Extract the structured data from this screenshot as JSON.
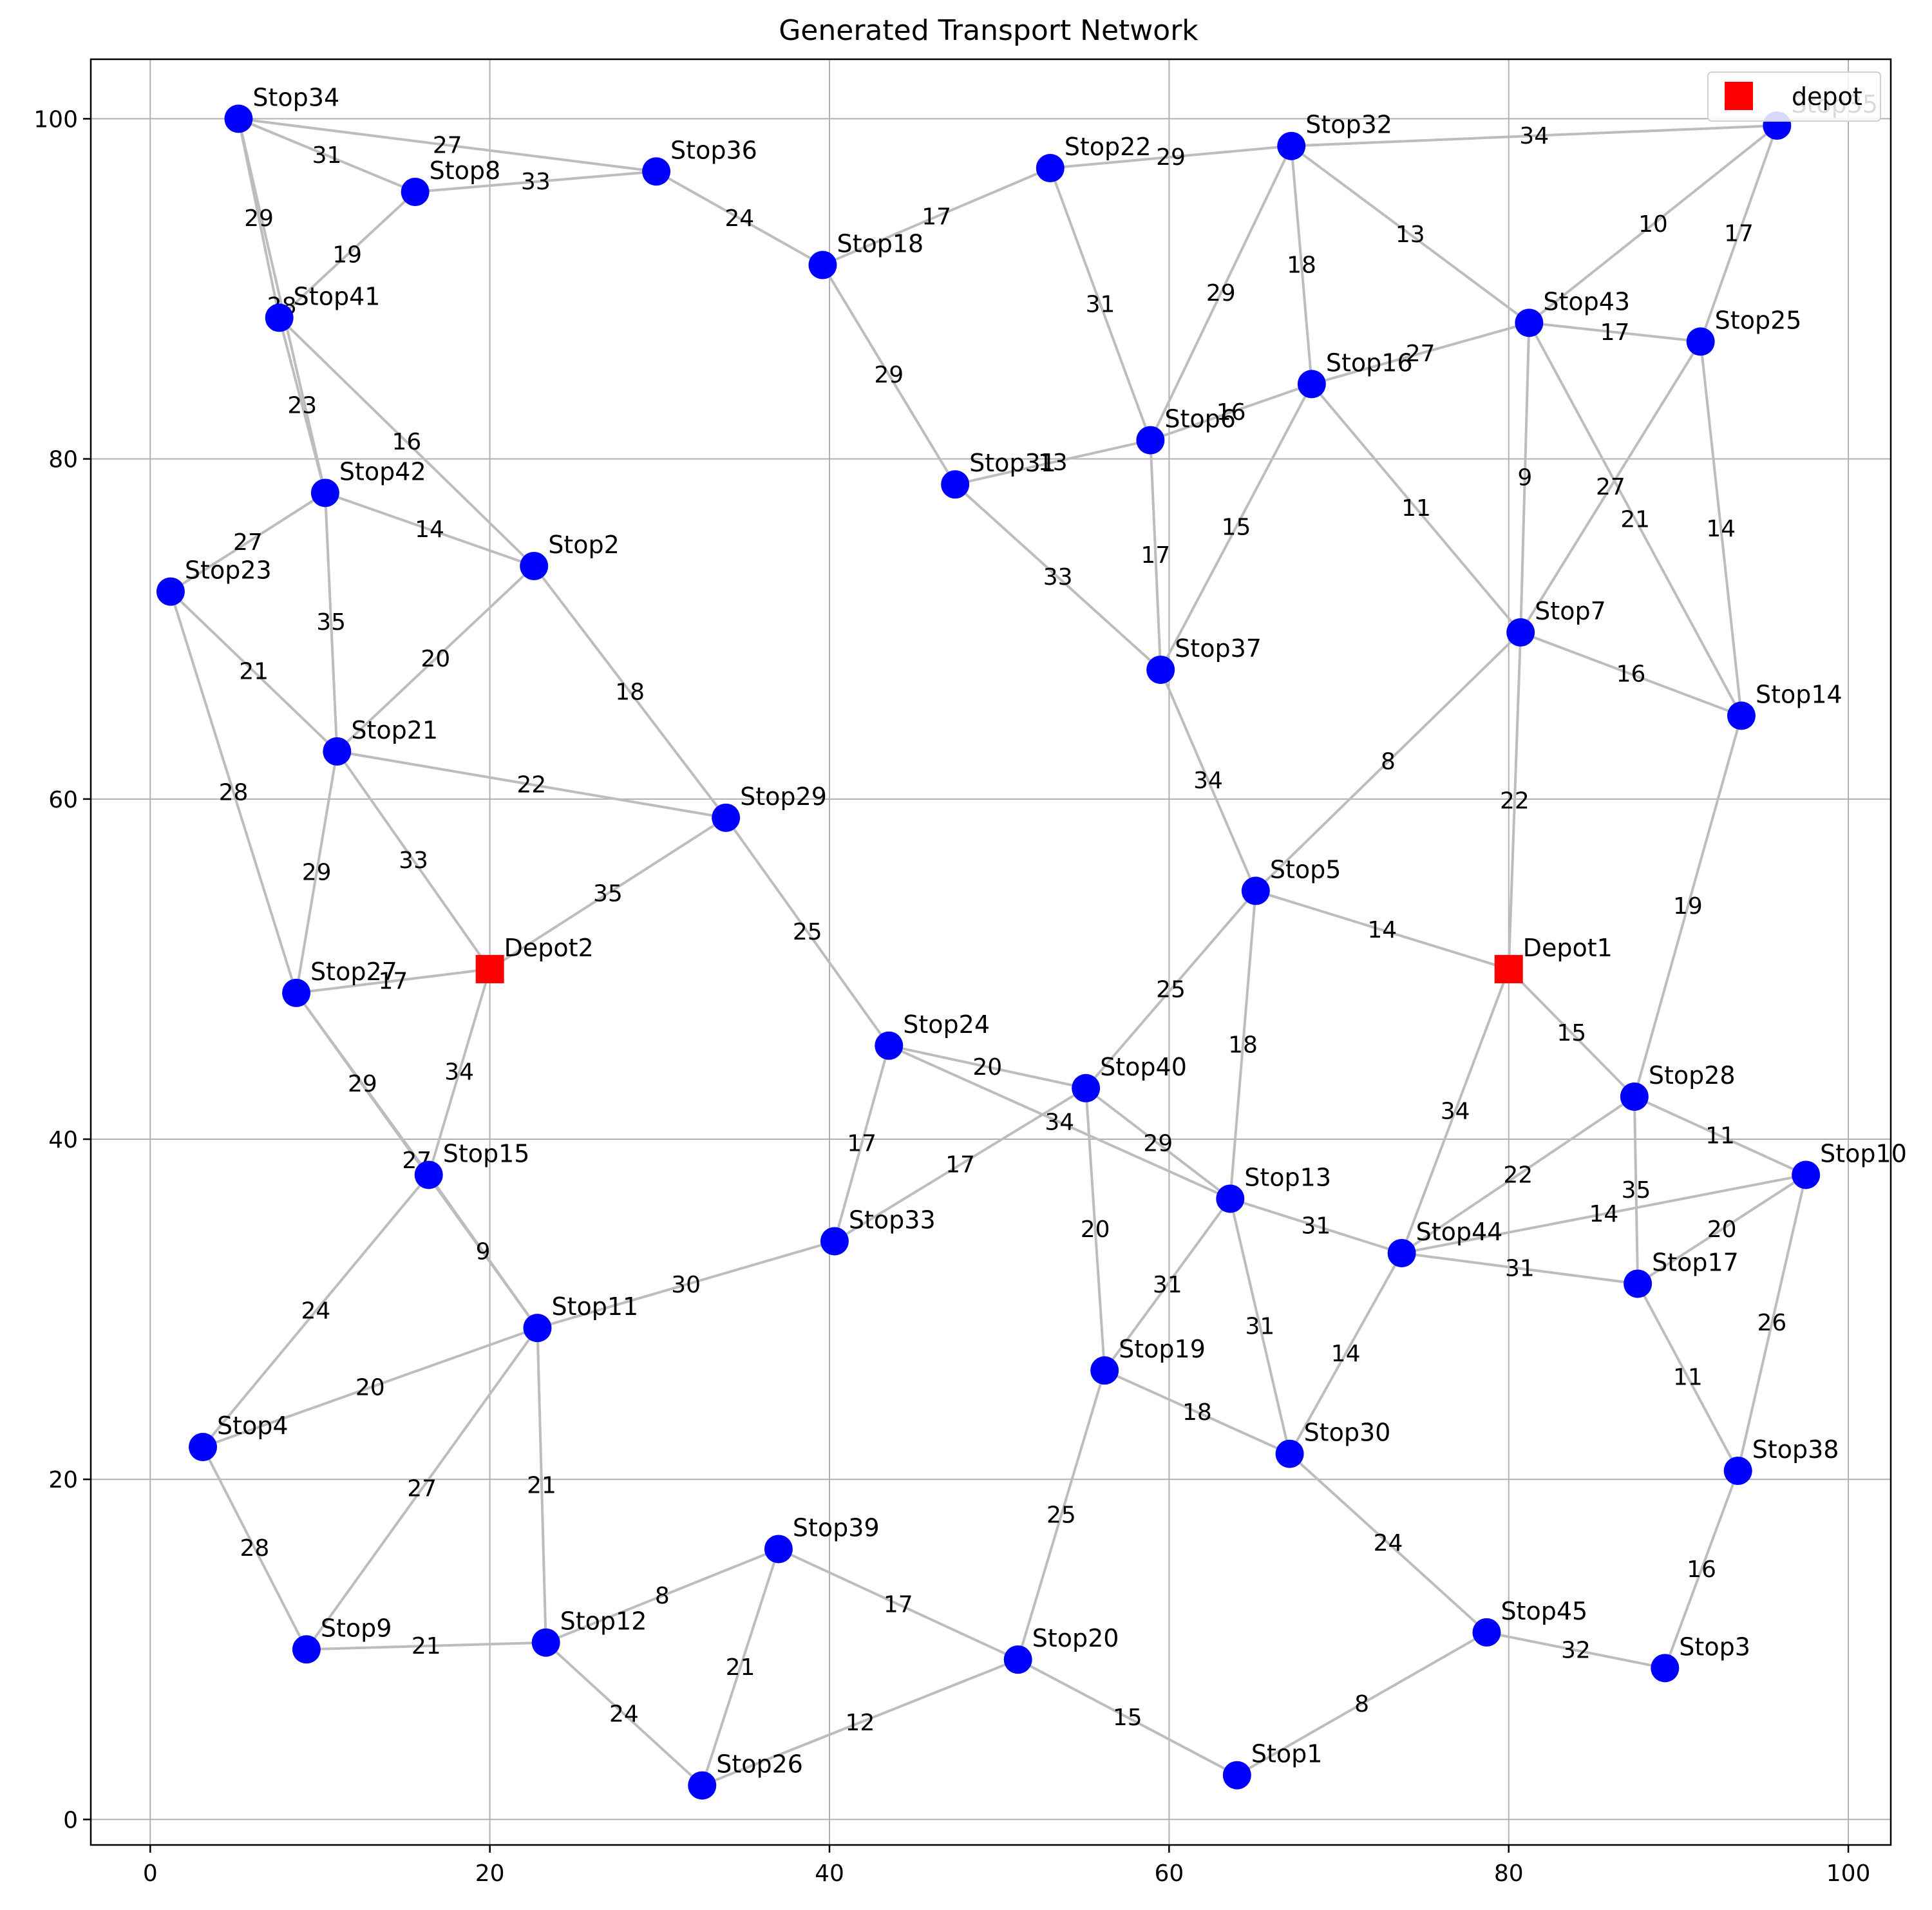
{
  "chart_data": {
    "type": "scatter",
    "title": "Generated Transport Network",
    "xlabel": "",
    "ylabel": "",
    "xlim": [
      -3.5,
      102.5
    ],
    "ylim": [
      -1.5,
      103.5
    ],
    "x_ticks": [
      "0",
      "20",
      "40",
      "60",
      "80",
      "100"
    ],
    "y_ticks": [
      "0",
      "20",
      "40",
      "60",
      "80",
      "100"
    ],
    "grid": true,
    "legend": {
      "position": "top-right",
      "entries": [
        {
          "label": "depot",
          "color": "#ff0000",
          "marker": "square"
        }
      ]
    },
    "colors": {
      "stop": "#0000ff",
      "depot": "#ff0000",
      "edge": "#bdbdbd"
    },
    "nodes": [
      {
        "id": "Stop1",
        "label": "Stop1",
        "x": 64,
        "y": 2.6,
        "kind": "stop"
      },
      {
        "id": "Stop2",
        "label": "Stop2",
        "x": 22.6,
        "y": 73.7,
        "kind": "stop"
      },
      {
        "id": "Stop3",
        "label": "Stop3",
        "x": 89.2,
        "y": 8.9,
        "kind": "stop"
      },
      {
        "id": "Stop4",
        "label": "Stop4",
        "x": 3.1,
        "y": 21.9,
        "kind": "stop"
      },
      {
        "id": "Stop5",
        "label": "Stop5",
        "x": 65.1,
        "y": 54.6,
        "kind": "stop"
      },
      {
        "id": "Stop6",
        "label": "Stop6",
        "x": 58.9,
        "y": 81.1,
        "kind": "stop"
      },
      {
        "id": "Stop7",
        "label": "Stop7",
        "x": 80.7,
        "y": 69.8,
        "kind": "stop"
      },
      {
        "id": "Stop8",
        "label": "Stop8",
        "x": 15.6,
        "y": 95.7,
        "kind": "stop"
      },
      {
        "id": "Stop9",
        "label": "Stop9",
        "x": 9.2,
        "y": 10,
        "kind": "stop"
      },
      {
        "id": "Stop10",
        "label": "Stop10",
        "x": 97.5,
        "y": 37.9,
        "kind": "stop"
      },
      {
        "id": "Stop11",
        "label": "Stop11",
        "x": 22.8,
        "y": 28.9,
        "kind": "stop"
      },
      {
        "id": "Stop12",
        "label": "Stop12",
        "x": 23.3,
        "y": 10.4,
        "kind": "stop"
      },
      {
        "id": "Stop13",
        "label": "Stop13",
        "x": 63.6,
        "y": 36.5,
        "kind": "stop"
      },
      {
        "id": "Stop14",
        "label": "Stop14",
        "x": 93.7,
        "y": 64.9,
        "kind": "stop"
      },
      {
        "id": "Stop15",
        "label": "Stop15",
        "x": 16.4,
        "y": 37.9,
        "kind": "stop"
      },
      {
        "id": "Stop16",
        "label": "Stop16",
        "x": 68.4,
        "y": 84.4,
        "kind": "stop"
      },
      {
        "id": "Stop17",
        "label": "Stop17",
        "x": 87.6,
        "y": 31.5,
        "kind": "stop"
      },
      {
        "id": "Stop18",
        "label": "Stop18",
        "x": 39.6,
        "y": 91.4,
        "kind": "stop"
      },
      {
        "id": "Stop19",
        "label": "Stop19",
        "x": 56.2,
        "y": 26.4,
        "kind": "stop"
      },
      {
        "id": "Stop20",
        "label": "Stop20",
        "x": 51.1,
        "y": 9.4,
        "kind": "stop"
      },
      {
        "id": "Stop21",
        "label": "Stop21",
        "x": 11.0,
        "y": 62.8,
        "kind": "stop"
      },
      {
        "id": "Stop22",
        "label": "Stop22",
        "x": 53.0,
        "y": 97.1,
        "kind": "stop"
      },
      {
        "id": "Stop23",
        "label": "Stop23",
        "x": 1.2,
        "y": 72.2,
        "kind": "stop"
      },
      {
        "id": "Stop24",
        "label": "Stop24",
        "x": 43.5,
        "y": 45.5,
        "kind": "stop"
      },
      {
        "id": "Stop25",
        "label": "Stop25",
        "x": 91.3,
        "y": 86.9,
        "kind": "stop"
      },
      {
        "id": "Stop26",
        "label": "Stop26",
        "x": 32.5,
        "y": 2.0,
        "kind": "stop"
      },
      {
        "id": "Stop27",
        "label": "Stop27",
        "x": 8.6,
        "y": 48.6,
        "kind": "stop"
      },
      {
        "id": "Stop28",
        "label": "Stop28",
        "x": 87.4,
        "y": 42.5,
        "kind": "stop"
      },
      {
        "id": "Stop29",
        "label": "Stop29",
        "x": 33.9,
        "y": 58.9,
        "kind": "stop"
      },
      {
        "id": "Stop30",
        "label": "Stop30",
        "x": 67.1,
        "y": 21.5,
        "kind": "stop"
      },
      {
        "id": "Stop31",
        "label": "Stop31",
        "x": 47.4,
        "y": 78.5,
        "kind": "stop"
      },
      {
        "id": "Stop32",
        "label": "Stop32",
        "x": 67.2,
        "y": 98.4,
        "kind": "stop"
      },
      {
        "id": "Stop33",
        "label": "Stop33",
        "x": 40.3,
        "y": 34.0,
        "kind": "stop"
      },
      {
        "id": "Stop34",
        "label": "Stop34",
        "x": 5.2,
        "y": 100.0,
        "kind": "stop"
      },
      {
        "id": "Stop35",
        "label": "Stop35",
        "x": 95.8,
        "y": 99.6,
        "kind": "stop"
      },
      {
        "id": "Stop36",
        "label": "Stop36",
        "x": 29.8,
        "y": 96.9,
        "kind": "stop"
      },
      {
        "id": "Stop37",
        "label": "Stop37",
        "x": 59.5,
        "y": 67.6,
        "kind": "stop"
      },
      {
        "id": "Stop38",
        "label": "Stop38",
        "x": 93.5,
        "y": 20.5,
        "kind": "stop"
      },
      {
        "id": "Stop39",
        "label": "Stop39",
        "x": 37.0,
        "y": 15.9,
        "kind": "stop"
      },
      {
        "id": "Stop40",
        "label": "Stop40",
        "x": 55.1,
        "y": 43.0,
        "kind": "stop"
      },
      {
        "id": "Stop41",
        "label": "Stop41",
        "x": 7.6,
        "y": 88.3,
        "kind": "stop"
      },
      {
        "id": "Stop42",
        "label": "Stop42",
        "x": 10.3,
        "y": 78.0,
        "kind": "stop"
      },
      {
        "id": "Stop43",
        "label": "Stop43",
        "x": 81.2,
        "y": 88.0,
        "kind": "stop"
      },
      {
        "id": "Stop44",
        "label": "Stop44",
        "x": 73.7,
        "y": 33.3,
        "kind": "stop"
      },
      {
        "id": "Stop45",
        "label": "Stop45",
        "x": 78.7,
        "y": 11.0,
        "kind": "stop"
      },
      {
        "id": "Depot1",
        "label": "Depot1",
        "x": 80.0,
        "y": 50.0,
        "kind": "depot"
      },
      {
        "id": "Depot2",
        "label": "Depot2",
        "x": 20.0,
        "y": 50.0,
        "kind": "depot"
      }
    ],
    "edges": [
      {
        "from": "Stop34",
        "to": "Stop36",
        "weight": "27"
      },
      {
        "from": "Stop34",
        "to": "Stop8",
        "weight": "31"
      },
      {
        "from": "Stop34",
        "to": "Stop41",
        "weight": "29"
      },
      {
        "from": "Stop34",
        "to": "Stop42",
        "weight": "28"
      },
      {
        "from": "Stop8",
        "to": "Stop36",
        "weight": "33"
      },
      {
        "from": "Stop8",
        "to": "Stop41",
        "weight": "19"
      },
      {
        "from": "Stop41",
        "to": "Stop42",
        "weight": "23"
      },
      {
        "from": "Stop41",
        "to": "Stop2",
        "weight": "16"
      },
      {
        "from": "Stop42",
        "to": "Stop23",
        "weight": "27"
      },
      {
        "from": "Stop42",
        "to": "Stop2",
        "weight": "14"
      },
      {
        "from": "Stop42",
        "to": "Stop21",
        "weight": "35"
      },
      {
        "from": "Stop23",
        "to": "Stop21",
        "weight": "21"
      },
      {
        "from": "Stop23",
        "to": "Stop27",
        "weight": "28"
      },
      {
        "from": "Stop2",
        "to": "Stop21",
        "weight": "20"
      },
      {
        "from": "Stop2",
        "to": "Stop29",
        "weight": "18"
      },
      {
        "from": "Stop21",
        "to": "Stop29",
        "weight": "22"
      },
      {
        "from": "Stop21",
        "to": "Stop27",
        "weight": "29"
      },
      {
        "from": "Stop21",
        "to": "Depot2",
        "weight": "33"
      },
      {
        "from": "Stop29",
        "to": "Depot2",
        "weight": "35"
      },
      {
        "from": "Stop29",
        "to": "Stop24",
        "weight": "25"
      },
      {
        "from": "Stop27",
        "to": "Depot2",
        "weight": "17"
      },
      {
        "from": "Stop27",
        "to": "Stop15",
        "weight": "29"
      },
      {
        "from": "Stop27",
        "to": "Stop11",
        "weight": "27"
      },
      {
        "from": "Depot2",
        "to": "Stop15",
        "weight": "34"
      },
      {
        "from": "Stop15",
        "to": "Stop11",
        "weight": "9"
      },
      {
        "from": "Stop15",
        "to": "Stop4",
        "weight": "24"
      },
      {
        "from": "Stop11",
        "to": "Stop4",
        "weight": "20"
      },
      {
        "from": "Stop11",
        "to": "Stop33",
        "weight": "30"
      },
      {
        "from": "Stop11",
        "to": "Stop9",
        "weight": "27"
      },
      {
        "from": "Stop11",
        "to": "Stop12",
        "weight": "21"
      },
      {
        "from": "Stop4",
        "to": "Stop9",
        "weight": "28"
      },
      {
        "from": "Stop9",
        "to": "Stop12",
        "weight": "21"
      },
      {
        "from": "Stop12",
        "to": "Stop39",
        "weight": "8"
      },
      {
        "from": "Stop12",
        "to": "Stop26",
        "weight": "24"
      },
      {
        "from": "Stop39",
        "to": "Stop26",
        "weight": "21"
      },
      {
        "from": "Stop39",
        "to": "Stop20",
        "weight": "17"
      },
      {
        "from": "Stop26",
        "to": "Stop20",
        "weight": "12"
      },
      {
        "from": "Stop20",
        "to": "Stop19",
        "weight": "25"
      },
      {
        "from": "Stop20",
        "to": "Stop1",
        "weight": "15"
      },
      {
        "from": "Stop1",
        "to": "Stop45",
        "weight": "8"
      },
      {
        "from": "Stop45",
        "to": "Stop3",
        "weight": "32"
      },
      {
        "from": "Stop45",
        "to": "Stop30",
        "weight": "24"
      },
      {
        "from": "Stop3",
        "to": "Stop38",
        "weight": "16"
      },
      {
        "from": "Stop38",
        "to": "Stop17",
        "weight": "11"
      },
      {
        "from": "Stop38",
        "to": "Stop10",
        "weight": "26"
      },
      {
        "from": "Stop17",
        "to": "Stop10",
        "weight": "20"
      },
      {
        "from": "Stop17",
        "to": "Stop28",
        "weight": "35"
      },
      {
        "from": "Stop17",
        "to": "Stop44",
        "weight": "31"
      },
      {
        "from": "Stop10",
        "to": "Stop28",
        "weight": "11"
      },
      {
        "from": "Stop10",
        "to": "Stop44",
        "weight": "14"
      },
      {
        "from": "Stop28",
        "to": "Stop44",
        "weight": "22"
      },
      {
        "from": "Stop28",
        "to": "Depot1",
        "weight": "15"
      },
      {
        "from": "Stop28",
        "to": "Stop14",
        "weight": "19"
      },
      {
        "from": "Depot1",
        "to": "Stop44",
        "weight": "34"
      },
      {
        "from": "Depot1",
        "to": "Stop5",
        "weight": "14"
      },
      {
        "from": "Depot1",
        "to": "Stop7",
        "weight": "22"
      },
      {
        "from": "Stop44",
        "to": "Stop30",
        "weight": "14"
      },
      {
        "from": "Stop44",
        "to": "Stop13",
        "weight": "31"
      },
      {
        "from": "Stop30",
        "to": "Stop19",
        "weight": "18"
      },
      {
        "from": "Stop30",
        "to": "Stop13",
        "weight": "31"
      },
      {
        "from": "Stop19",
        "to": "Stop13",
        "weight": "31"
      },
      {
        "from": "Stop19",
        "to": "Stop40",
        "weight": "20"
      },
      {
        "from": "Stop13",
        "to": "Stop5",
        "weight": "18"
      },
      {
        "from": "Stop13",
        "to": "Stop40",
        "weight": "29"
      },
      {
        "from": "Stop13",
        "to": "Stop24",
        "weight": "34"
      },
      {
        "from": "Stop40",
        "to": "Stop24",
        "weight": "20"
      },
      {
        "from": "Stop40",
        "to": "Stop33",
        "weight": "17"
      },
      {
        "from": "Stop40",
        "to": "Stop5",
        "weight": "25"
      },
      {
        "from": "Stop24",
        "to": "Stop33",
        "weight": "17"
      },
      {
        "from": "Stop5",
        "to": "Stop37",
        "weight": "34"
      },
      {
        "from": "Stop5",
        "to": "Stop7",
        "weight": "8"
      },
      {
        "from": "Stop7",
        "to": "Stop14",
        "weight": "16"
      },
      {
        "from": "Stop7",
        "to": "Stop16",
        "weight": "11"
      },
      {
        "from": "Stop7",
        "to": "Stop43",
        "weight": "9"
      },
      {
        "from": "Stop7",
        "to": "Stop25",
        "weight": "27"
      },
      {
        "from": "Stop14",
        "to": "Stop25",
        "weight": "14"
      },
      {
        "from": "Stop14",
        "to": "Stop43",
        "weight": "21"
      },
      {
        "from": "Stop43",
        "to": "Stop25",
        "weight": "17"
      },
      {
        "from": "Stop43",
        "to": "Stop35",
        "weight": "10"
      },
      {
        "from": "Stop25",
        "to": "Stop35",
        "weight": "17"
      },
      {
        "from": "Stop43",
        "to": "Stop16",
        "weight": "27"
      },
      {
        "from": "Stop43",
        "to": "Stop32",
        "weight": "13"
      },
      {
        "from": "Stop32",
        "to": "Stop35",
        "weight": "34"
      },
      {
        "from": "Stop32",
        "to": "Stop22",
        "weight": "29"
      },
      {
        "from": "Stop32",
        "to": "Stop6",
        "weight": "29"
      },
      {
        "from": "Stop32",
        "to": "Stop16",
        "weight": "18"
      },
      {
        "from": "Stop16",
        "to": "Stop6",
        "weight": "16"
      },
      {
        "from": "Stop16",
        "to": "Stop37",
        "weight": "15"
      },
      {
        "from": "Stop6",
        "to": "Stop37",
        "weight": "17"
      },
      {
        "from": "Stop6",
        "to": "Stop22",
        "weight": "31"
      },
      {
        "from": "Stop6",
        "to": "Stop31",
        "weight": "13"
      },
      {
        "from": "Stop31",
        "to": "Stop37",
        "weight": "33"
      },
      {
        "from": "Stop31",
        "to": "Stop18",
        "weight": "29"
      },
      {
        "from": "Stop18",
        "to": "Stop22",
        "weight": "17"
      },
      {
        "from": "Stop18",
        "to": "Stop36",
        "weight": "24"
      }
    ]
  }
}
